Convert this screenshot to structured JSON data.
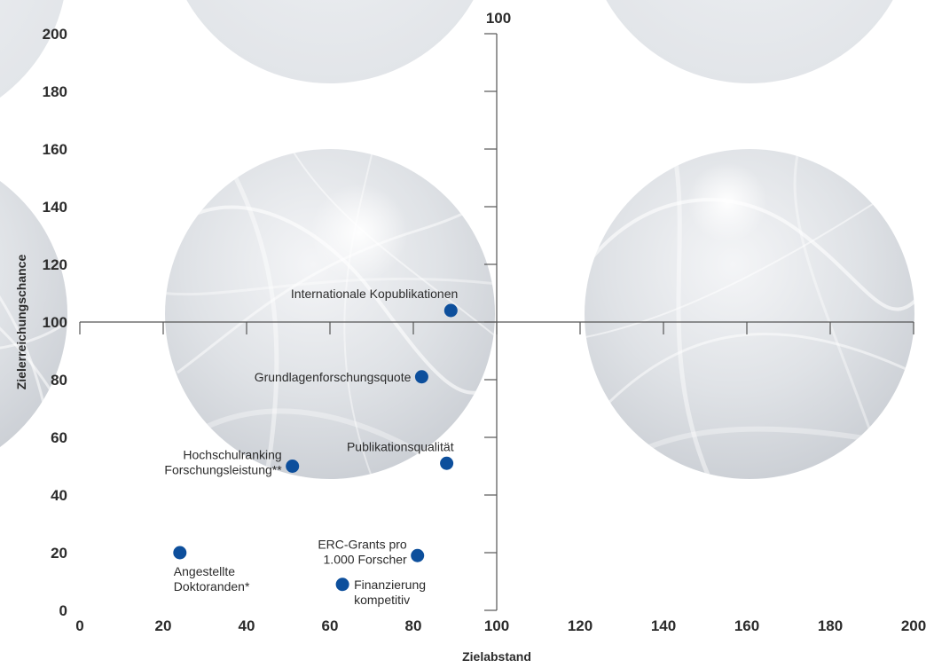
{
  "chart_data": {
    "type": "scatter",
    "title": "",
    "xlabel": "Zielabstand",
    "ylabel": "Zielerreichungschance",
    "xlim": [
      0,
      200
    ],
    "ylim": [
      0,
      200
    ],
    "x_ticks": [
      "0",
      "20",
      "40",
      "60",
      "80",
      "100",
      "120",
      "140",
      "160",
      "180",
      "200"
    ],
    "y_ticks": [
      "0",
      "20",
      "40",
      "60",
      "80",
      "100",
      "120",
      "140",
      "160",
      "180",
      "200"
    ],
    "top_axis_label": "100",
    "crosshair": {
      "x": 100,
      "y": 100
    },
    "marker_color": "#0d4f9c",
    "points": [
      {
        "label": [
          "Internationale Kopublikationen"
        ],
        "x": 89,
        "y": 104,
        "label_pos": "above-left"
      },
      {
        "label": [
          "Grundlagenforschungsquote"
        ],
        "x": 82,
        "y": 81,
        "label_pos": "left"
      },
      {
        "label": [
          "Publikationsqualität"
        ],
        "x": 88,
        "y": 51,
        "label_pos": "above-left"
      },
      {
        "label": [
          "Hochschulranking",
          "Forschungsleistung**"
        ],
        "x": 51,
        "y": 50,
        "label_pos": "left"
      },
      {
        "label": [
          "Angestellte",
          "Doktoranden*"
        ],
        "x": 24,
        "y": 20,
        "label_pos": "below"
      },
      {
        "label": [
          "ERC-Grants pro",
          "1.000 Forscher"
        ],
        "x": 81,
        "y": 19,
        "label_pos": "left"
      },
      {
        "label": [
          "Finanzierung",
          "kompetitiv"
        ],
        "x": 63,
        "y": 9,
        "label_pos": "right"
      }
    ]
  }
}
